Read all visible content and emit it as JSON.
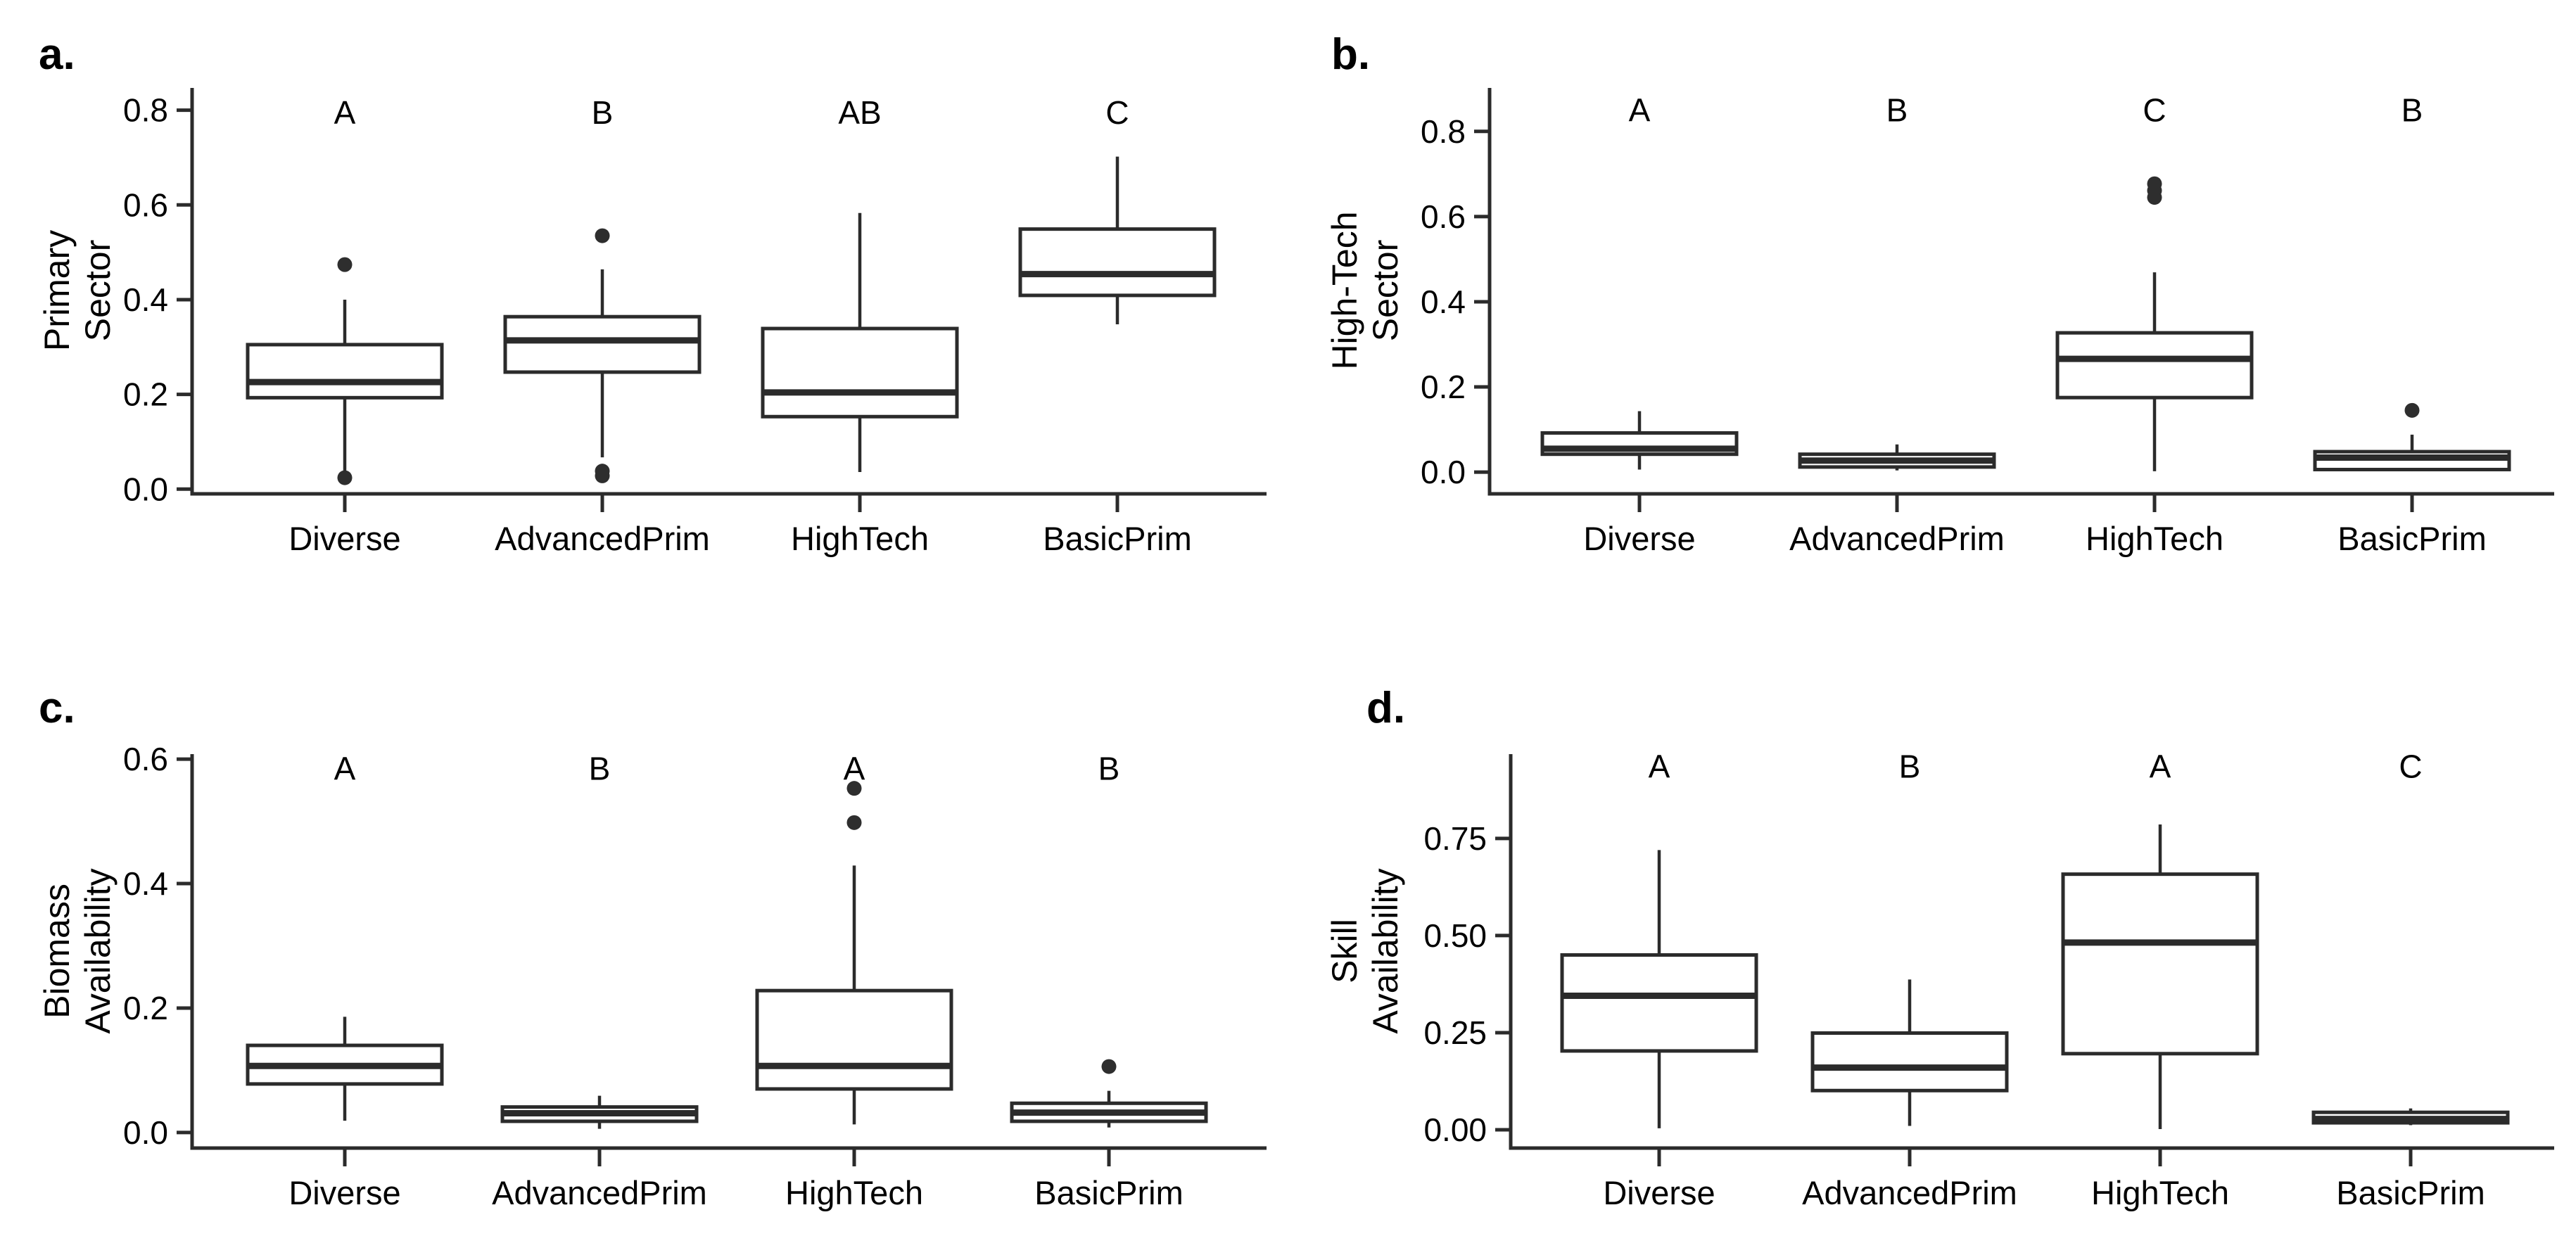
{
  "figure": {
    "background_color": "#ffffff",
    "line_color": "#2b2b2b",
    "outlier_color": "#2e2e2e",
    "text_color": "#000000",
    "categories": [
      "Diverse",
      "AdvancedPrim",
      "HighTech",
      "BasicPrim"
    ]
  },
  "chart_data": [
    {
      "type": "boxplot",
      "panel_label": "a.",
      "ylabel_lines": [
        "Primary",
        "Sector"
      ],
      "categories": [
        "Diverse",
        "AdvancedPrim",
        "HighTech",
        "BasicPrim"
      ],
      "significance_letters": [
        "A",
        "B",
        "AB",
        "C"
      ],
      "y_ticks": [
        0.0,
        0.2,
        0.4,
        0.6,
        0.8
      ],
      "y_tick_labels": [
        "0.0",
        "0.2",
        "0.4",
        "0.6",
        "0.8"
      ],
      "ylim": [
        -0.01,
        0.847
      ],
      "letter_y": 0.795,
      "series": [
        {
          "category": "Diverse",
          "letter": "A",
          "whisker_low": 0.039,
          "q1": 0.193,
          "median": 0.226,
          "q3": 0.305,
          "whisker_high": 0.4,
          "outliers": [
            0.474,
            0.024
          ]
        },
        {
          "category": "AdvancedPrim",
          "letter": "B",
          "whisker_low": 0.067,
          "q1": 0.247,
          "median": 0.314,
          "q3": 0.364,
          "whisker_high": 0.464,
          "outliers": [
            0.535,
            0.038,
            0.028
          ]
        },
        {
          "category": "HighTech",
          "letter": "AB",
          "whisker_low": 0.036,
          "q1": 0.153,
          "median": 0.204,
          "q3": 0.339,
          "whisker_high": 0.583,
          "outliers": []
        },
        {
          "category": "BasicPrim",
          "letter": "C",
          "whisker_low": 0.348,
          "q1": 0.409,
          "median": 0.454,
          "q3": 0.549,
          "whisker_high": 0.702,
          "outliers": []
        }
      ]
    },
    {
      "type": "boxplot",
      "panel_label": "b.",
      "ylabel_lines": [
        "High-Tech",
        "Sector"
      ],
      "categories": [
        "Diverse",
        "AdvancedPrim",
        "HighTech",
        "BasicPrim"
      ],
      "significance_letters": [
        "A",
        "B",
        "C",
        "B"
      ],
      "y_ticks": [
        0.0,
        0.2,
        0.4,
        0.6,
        0.8
      ],
      "y_tick_labels": [
        "0.0",
        "0.2",
        "0.4",
        "0.6",
        "0.8"
      ],
      "ylim": [
        -0.051,
        0.902
      ],
      "letter_y": 0.85,
      "series": [
        {
          "category": "Diverse",
          "letter": "A",
          "whisker_low": 0.006,
          "q1": 0.042,
          "median": 0.055,
          "q3": 0.092,
          "whisker_high": 0.143,
          "outliers": []
        },
        {
          "category": "AdvancedPrim",
          "letter": "B",
          "whisker_low": 0.004,
          "q1": 0.012,
          "median": 0.027,
          "q3": 0.042,
          "whisker_high": 0.065,
          "outliers": []
        },
        {
          "category": "HighTech",
          "letter": "C",
          "whisker_low": 0.002,
          "q1": 0.175,
          "median": 0.266,
          "q3": 0.327,
          "whisker_high": 0.469,
          "outliers": [
            0.677,
            0.661,
            0.645
          ]
        },
        {
          "category": "BasicPrim",
          "letter": "B",
          "whisker_low": 0.002,
          "q1": 0.006,
          "median": 0.034,
          "q3": 0.048,
          "whisker_high": 0.088,
          "outliers": [
            0.145
          ]
        }
      ]
    },
    {
      "type": "boxplot",
      "panel_label": "c.",
      "ylabel_lines": [
        "Biomass",
        "Availability"
      ],
      "categories": [
        "Diverse",
        "AdvancedPrim",
        "HighTech",
        "BasicPrim"
      ],
      "significance_letters": [
        "A",
        "B",
        "A",
        "B"
      ],
      "y_ticks": [
        0.0,
        0.2,
        0.4,
        0.6
      ],
      "y_tick_labels": [
        "0.0",
        "0.2",
        "0.4",
        "0.6"
      ],
      "ylim": [
        -0.025,
        0.608
      ],
      "letter_y": 0.585,
      "series": [
        {
          "category": "Diverse",
          "letter": "A",
          "whisker_low": 0.019,
          "q1": 0.078,
          "median": 0.107,
          "q3": 0.14,
          "whisker_high": 0.186,
          "outliers": []
        },
        {
          "category": "AdvancedPrim",
          "letter": "B",
          "whisker_low": 0.006,
          "q1": 0.018,
          "median": 0.031,
          "q3": 0.041,
          "whisker_high": 0.059,
          "outliers": []
        },
        {
          "category": "HighTech",
          "letter": "A",
          "whisker_low": 0.013,
          "q1": 0.07,
          "median": 0.107,
          "q3": 0.228,
          "whisker_high": 0.429,
          "outliers": [
            0.553,
            0.498
          ]
        },
        {
          "category": "BasicPrim",
          "letter": "B",
          "whisker_low": 0.008,
          "q1": 0.018,
          "median": 0.032,
          "q3": 0.047,
          "whisker_high": 0.067,
          "outliers": [
            0.106
          ]
        }
      ]
    },
    {
      "type": "boxplot",
      "panel_label": "d.",
      "ylabel_lines": [
        "Skill",
        "Availability"
      ],
      "categories": [
        "Diverse",
        "AdvancedPrim",
        "HighTech",
        "BasicPrim"
      ],
      "significance_letters": [
        "A",
        "B",
        "A",
        "C"
      ],
      "y_ticks": [
        0.0,
        0.25,
        0.5,
        0.75
      ],
      "y_tick_labels": [
        "0.00",
        "0.25",
        "0.50",
        "0.75"
      ],
      "ylim": [
        -0.047,
        0.967
      ],
      "letter_y": 0.935,
      "series": [
        {
          "category": "Diverse",
          "letter": "A",
          "whisker_low": 0.004,
          "q1": 0.203,
          "median": 0.345,
          "q3": 0.45,
          "whisker_high": 0.72,
          "outliers": []
        },
        {
          "category": "AdvancedPrim",
          "letter": "B",
          "whisker_low": 0.01,
          "q1": 0.101,
          "median": 0.16,
          "q3": 0.249,
          "whisker_high": 0.387,
          "outliers": []
        },
        {
          "category": "HighTech",
          "letter": "A",
          "whisker_low": 0.002,
          "q1": 0.196,
          "median": 0.482,
          "q3": 0.658,
          "whisker_high": 0.786,
          "outliers": []
        },
        {
          "category": "BasicPrim",
          "letter": "C",
          "whisker_low": 0.012,
          "q1": 0.018,
          "median": 0.028,
          "q3": 0.045,
          "whisker_high": 0.055,
          "outliers": []
        }
      ]
    }
  ]
}
